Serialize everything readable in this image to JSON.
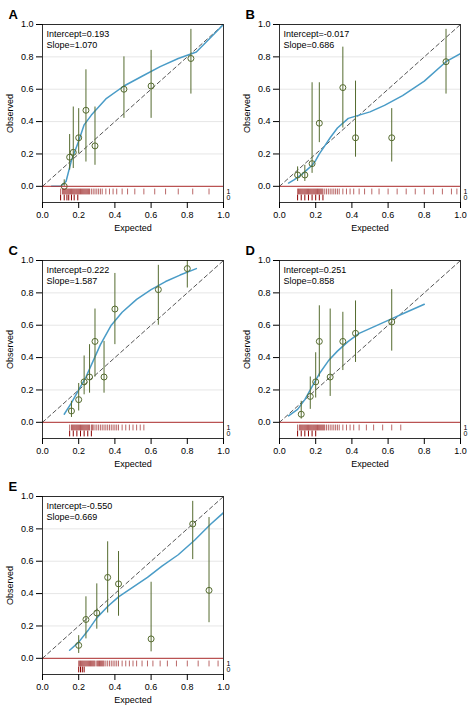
{
  "chart_data": [
    {
      "type": "scatter",
      "title": "A",
      "annotations": [
        "Intercept=0.193",
        "Slope=1.070"
      ],
      "xlabel": "Expected",
      "ylabel": "Observed",
      "xlim": [
        0.0,
        1.0
      ],
      "ylim": [
        -0.1,
        1.0
      ],
      "xticks": [
        {
          "value": 0.0,
          "label": "0.0"
        },
        0.2,
        0.4,
        0.6,
        0.8,
        {
          "value": 1.0,
          "label": "1.0"
        }
      ],
      "yticks": [
        {
          "value": 0.0,
          "label": "0.0"
        },
        0.2,
        0.4,
        0.6,
        0.8,
        {
          "value": 1.0,
          "label": "1.0"
        }
      ],
      "grid": true,
      "series": [
        {
          "type": "line",
          "line_style": "dashed",
          "color": "#555555",
          "x": [
            0,
            1
          ],
          "values": [
            0,
            1
          ]
        },
        {
          "type": "line",
          "color": "#4a9cc7",
          "x": [
            0.05,
            0.1,
            0.13,
            0.16,
            0.18,
            0.2,
            0.23,
            0.27,
            0.35,
            0.45,
            0.55,
            0.65,
            0.75,
            0.85,
            1.0
          ],
          "values": [
            0.0,
            0.0,
            0.03,
            0.16,
            0.22,
            0.28,
            0.38,
            0.44,
            0.54,
            0.62,
            0.68,
            0.74,
            0.79,
            0.83,
            1.0
          ]
        },
        {
          "type": "scatter",
          "marker": "open_circle",
          "color": "#556b2f",
          "x": [
            0.12,
            0.15,
            0.17,
            0.2,
            0.24,
            0.29,
            0.45,
            0.6,
            0.82
          ],
          "values": [
            0.0,
            0.18,
            0.21,
            0.3,
            0.47,
            0.25,
            0.6,
            0.62,
            0.79
          ],
          "error_lo": [
            0.0,
            0.08,
            0.1,
            0.1,
            0.32,
            0.12,
            0.18,
            0.2,
            0.22
          ],
          "error_hi": [
            0.04,
            0.14,
            0.28,
            0.18,
            0.25,
            0.24,
            0.2,
            0.22,
            0.18
          ]
        },
        {
          "type": "hline",
          "color": "#b03030",
          "values": [
            0
          ]
        },
        {
          "type": "rug",
          "label": "1",
          "color": "#8b0000",
          "x": [
            0.1,
            0.11,
            0.115,
            0.12,
            0.125,
            0.13,
            0.135,
            0.14,
            0.145,
            0.15,
            0.155,
            0.16,
            0.165,
            0.17,
            0.175,
            0.18,
            0.185,
            0.19,
            0.195,
            0.2,
            0.205,
            0.21,
            0.215,
            0.22,
            0.225,
            0.23,
            0.235,
            0.24,
            0.245,
            0.25,
            0.255,
            0.26,
            0.27,
            0.28,
            0.29,
            0.3,
            0.31,
            0.32,
            0.33,
            0.35,
            0.37,
            0.39,
            0.41,
            0.44,
            0.47,
            0.51,
            0.56,
            0.62,
            0.68,
            0.75,
            0.83,
            0.92
          ]
        },
        {
          "type": "rug",
          "label": "0",
          "color": "#8b0000",
          "x": [
            0.1,
            0.12,
            0.135,
            0.145,
            0.16,
            0.175,
            0.195
          ]
        }
      ]
    },
    {
      "type": "scatter",
      "title": "B",
      "annotations": [
        "Intercept=-0.017",
        "Slope=0.686"
      ],
      "xlabel": "Expected",
      "ylabel": "Observed",
      "xlim": [
        0.0,
        1.0
      ],
      "ylim": [
        -0.1,
        1.0
      ],
      "xticks": [
        {
          "value": 0.0,
          "label": "0.0"
        },
        0.2,
        0.4,
        0.6,
        0.8,
        {
          "value": 1.0,
          "label": "1.0"
        }
      ],
      "yticks": [
        {
          "value": 0.0,
          "label": "0.0"
        },
        0.2,
        0.4,
        0.6,
        0.8,
        {
          "value": 1.0,
          "label": "1.0"
        }
      ],
      "grid": true,
      "series": [
        {
          "type": "line",
          "line_style": "dashed",
          "color": "#555555",
          "x": [
            0,
            1
          ],
          "values": [
            0,
            1
          ]
        },
        {
          "type": "line",
          "color": "#4a9cc7",
          "x": [
            0.05,
            0.08,
            0.12,
            0.15,
            0.18,
            0.2,
            0.22,
            0.25,
            0.28,
            0.32,
            0.38,
            0.44,
            0.5,
            0.58,
            0.68,
            0.8,
            0.92,
            1.0
          ],
          "values": [
            0.02,
            0.04,
            0.07,
            0.1,
            0.13,
            0.16,
            0.2,
            0.25,
            0.3,
            0.36,
            0.42,
            0.44,
            0.46,
            0.5,
            0.56,
            0.65,
            0.77,
            0.82
          ]
        },
        {
          "type": "scatter",
          "marker": "open_circle",
          "color": "#556b2f",
          "x": [
            0.1,
            0.14,
            0.18,
            0.22,
            0.35,
            0.42,
            0.62,
            0.92
          ],
          "values": [
            0.07,
            0.07,
            0.14,
            0.39,
            0.61,
            0.3,
            0.3,
            0.77
          ],
          "error_lo": [
            0.04,
            0.04,
            0.06,
            0.12,
            0.25,
            0.12,
            0.15,
            0.2
          ],
          "error_hi": [
            0.05,
            0.06,
            0.5,
            0.25,
            0.25,
            0.35,
            0.18,
            0.2
          ]
        },
        {
          "type": "hline",
          "color": "#b03030",
          "values": [
            0
          ]
        },
        {
          "type": "rug",
          "label": "1",
          "color": "#8b0000",
          "x": [
            0.1,
            0.105,
            0.11,
            0.115,
            0.12,
            0.125,
            0.13,
            0.135,
            0.14,
            0.145,
            0.15,
            0.155,
            0.16,
            0.165,
            0.17,
            0.175,
            0.18,
            0.185,
            0.19,
            0.195,
            0.2,
            0.205,
            0.21,
            0.215,
            0.22,
            0.225,
            0.23,
            0.235,
            0.24,
            0.25,
            0.26,
            0.27,
            0.28,
            0.29,
            0.3,
            0.31,
            0.32,
            0.33,
            0.35,
            0.37,
            0.39,
            0.41,
            0.44,
            0.47,
            0.51,
            0.55,
            0.6,
            0.65,
            0.7,
            0.75,
            0.8,
            0.85,
            0.9,
            0.95,
            0.98
          ]
        },
        {
          "type": "rug",
          "label": "0",
          "color": "#8b0000",
          "x": [
            0.1,
            0.12,
            0.14,
            0.16,
            0.18,
            0.2,
            0.22,
            0.24
          ]
        }
      ]
    },
    {
      "type": "scatter",
      "title": "C",
      "annotations": [
        "Intercept=0.222",
        "Slope=1.587"
      ],
      "xlabel": "Expected",
      "ylabel": "Observed",
      "xlim": [
        0.0,
        1.0
      ],
      "ylim": [
        -0.1,
        1.0
      ],
      "xticks": [
        {
          "value": 0.0,
          "label": "0.0"
        },
        0.2,
        0.4,
        0.6,
        0.8,
        {
          "value": 1.0,
          "label": "1.0"
        }
      ],
      "yticks": [
        {
          "value": 0.0,
          "label": "0.0"
        },
        0.2,
        0.4,
        0.6,
        0.8,
        {
          "value": 1.0,
          "label": "1.0"
        }
      ],
      "grid": true,
      "series": [
        {
          "type": "line",
          "line_style": "dashed",
          "color": "#555555",
          "x": [
            0,
            1
          ],
          "values": [
            0,
            1
          ]
        },
        {
          "type": "line",
          "color": "#4a9cc7",
          "x": [
            0.12,
            0.16,
            0.2,
            0.24,
            0.28,
            0.32,
            0.38,
            0.44,
            0.52,
            0.6,
            0.68,
            0.76,
            0.85
          ],
          "values": [
            0.05,
            0.12,
            0.2,
            0.28,
            0.38,
            0.48,
            0.6,
            0.68,
            0.76,
            0.82,
            0.87,
            0.91,
            0.95
          ]
        },
        {
          "type": "scatter",
          "marker": "open_circle",
          "color": "#556b2f",
          "x": [
            0.16,
            0.2,
            0.23,
            0.26,
            0.29,
            0.34,
            0.4,
            0.64,
            0.8
          ],
          "values": [
            0.07,
            0.14,
            0.25,
            0.28,
            0.5,
            0.28,
            0.7,
            0.82,
            0.95
          ],
          "error_lo": [
            0.04,
            0.07,
            0.08,
            0.1,
            0.22,
            0.1,
            0.22,
            0.22,
            0.12
          ],
          "error_hi": [
            0.06,
            0.1,
            0.16,
            0.2,
            0.2,
            0.22,
            0.22,
            0.15,
            0.05
          ]
        },
        {
          "type": "hline",
          "color": "#b03030",
          "values": [
            0
          ]
        },
        {
          "type": "rug",
          "label": "1",
          "color": "#8b0000",
          "x": [
            0.15,
            0.16,
            0.165,
            0.17,
            0.175,
            0.18,
            0.185,
            0.19,
            0.195,
            0.2,
            0.205,
            0.21,
            0.215,
            0.22,
            0.225,
            0.23,
            0.235,
            0.24,
            0.245,
            0.25,
            0.255,
            0.26,
            0.27,
            0.275,
            0.28,
            0.29,
            0.3,
            0.31,
            0.32,
            0.33,
            0.34,
            0.35,
            0.36,
            0.37,
            0.38,
            0.39,
            0.4,
            0.41,
            0.42,
            0.44,
            0.46,
            0.48,
            0.5,
            0.52,
            0.54,
            0.56
          ]
        },
        {
          "type": "rug",
          "label": "0",
          "color": "#8b0000",
          "x": [
            0.15,
            0.17,
            0.19,
            0.21,
            0.23,
            0.25,
            0.27
          ]
        }
      ]
    },
    {
      "type": "scatter",
      "title": "D",
      "annotations": [
        "Intercept=0.251",
        "Slope=0.858"
      ],
      "xlabel": "Expected",
      "ylabel": "Observed",
      "xlim": [
        0.0,
        1.0
      ],
      "ylim": [
        -0.1,
        1.0
      ],
      "xticks": [
        {
          "value": 0.0,
          "label": "0.0"
        },
        0.2,
        0.4,
        0.6,
        0.8,
        {
          "value": 1.0,
          "label": "1.0"
        }
      ],
      "yticks": [
        {
          "value": 0.0,
          "label": "0.0"
        },
        0.2,
        0.4,
        0.6,
        0.8,
        {
          "value": 1.0,
          "label": "1.0"
        }
      ],
      "grid": true,
      "series": [
        {
          "type": "line",
          "line_style": "dashed",
          "color": "#555555",
          "x": [
            0,
            1
          ],
          "values": [
            0,
            1
          ]
        },
        {
          "type": "line",
          "color": "#4a9cc7",
          "x": [
            0.05,
            0.1,
            0.14,
            0.18,
            0.22,
            0.27,
            0.32,
            0.38,
            0.44,
            0.52,
            0.6,
            0.7,
            0.8
          ],
          "values": [
            0.04,
            0.08,
            0.14,
            0.22,
            0.3,
            0.38,
            0.44,
            0.5,
            0.55,
            0.59,
            0.63,
            0.68,
            0.73
          ]
        },
        {
          "type": "scatter",
          "marker": "open_circle",
          "color": "#556b2f",
          "x": [
            0.12,
            0.17,
            0.2,
            0.22,
            0.28,
            0.35,
            0.42,
            0.62
          ],
          "values": [
            0.05,
            0.16,
            0.25,
            0.5,
            0.28,
            0.5,
            0.55,
            0.62
          ],
          "error_lo": [
            0.03,
            0.08,
            0.1,
            0.22,
            0.12,
            0.18,
            0.18,
            0.18
          ],
          "error_hi": [
            0.08,
            0.12,
            0.18,
            0.22,
            0.42,
            0.18,
            0.2,
            0.2
          ]
        },
        {
          "type": "hline",
          "color": "#b03030",
          "values": [
            0
          ]
        },
        {
          "type": "rug",
          "label": "1",
          "color": "#8b0000",
          "x": [
            0.1,
            0.11,
            0.115,
            0.12,
            0.125,
            0.13,
            0.135,
            0.14,
            0.145,
            0.15,
            0.155,
            0.16,
            0.165,
            0.17,
            0.175,
            0.18,
            0.185,
            0.19,
            0.195,
            0.2,
            0.205,
            0.21,
            0.215,
            0.22,
            0.225,
            0.23,
            0.235,
            0.24,
            0.245,
            0.25,
            0.26,
            0.27,
            0.28,
            0.29,
            0.3,
            0.31,
            0.32,
            0.33,
            0.35,
            0.37,
            0.39,
            0.41,
            0.44,
            0.48,
            0.52,
            0.57,
            0.62,
            0.67
          ]
        },
        {
          "type": "rug",
          "label": "0",
          "color": "#8b0000",
          "x": [
            0.1,
            0.12,
            0.14,
            0.16,
            0.18,
            0.2
          ]
        }
      ]
    },
    {
      "type": "scatter",
      "title": "E",
      "annotations": [
        "Intercept=-0.550",
        "Slope=0.669"
      ],
      "xlabel": "Expected",
      "ylabel": "Observed",
      "xlim": [
        0.0,
        1.0
      ],
      "ylim": [
        -0.1,
        1.0
      ],
      "xticks": [
        {
          "value": 0.0,
          "label": "0.0"
        },
        0.2,
        0.4,
        0.6,
        0.8,
        {
          "value": 1.0,
          "label": "1.0"
        }
      ],
      "yticks": [
        {
          "value": 0.0,
          "label": "0.0"
        },
        0.2,
        0.4,
        0.6,
        0.8,
        {
          "value": 1.0,
          "label": "1.0"
        }
      ],
      "grid": true,
      "series": [
        {
          "type": "line",
          "line_style": "dashed",
          "color": "#555555",
          "x": [
            0,
            1
          ],
          "values": [
            0,
            1
          ]
        },
        {
          "type": "line",
          "color": "#4a9cc7",
          "x": [
            0.15,
            0.2,
            0.25,
            0.3,
            0.36,
            0.42,
            0.5,
            0.58,
            0.66,
            0.75,
            0.84,
            0.93,
            1.0
          ],
          "values": [
            0.05,
            0.1,
            0.17,
            0.25,
            0.32,
            0.38,
            0.44,
            0.5,
            0.57,
            0.64,
            0.73,
            0.83,
            0.9
          ]
        },
        {
          "type": "scatter",
          "marker": "open_circle",
          "color": "#556b2f",
          "x": [
            0.2,
            0.24,
            0.3,
            0.36,
            0.42,
            0.6,
            0.83,
            0.92
          ],
          "values": [
            0.08,
            0.24,
            0.28,
            0.5,
            0.46,
            0.12,
            0.83,
            0.42
          ],
          "error_lo": [
            0.05,
            0.12,
            0.1,
            0.22,
            0.2,
            0.08,
            0.22,
            0.2
          ],
          "error_hi": [
            0.06,
            0.14,
            0.18,
            0.22,
            0.2,
            0.35,
            0.14,
            0.45
          ]
        },
        {
          "type": "hline",
          "color": "#b03030",
          "values": [
            0
          ]
        },
        {
          "type": "rug",
          "label": "1",
          "color": "#8b0000",
          "x": [
            0.2,
            0.205,
            0.21,
            0.215,
            0.22,
            0.225,
            0.23,
            0.235,
            0.24,
            0.245,
            0.25,
            0.255,
            0.26,
            0.265,
            0.27,
            0.275,
            0.28,
            0.285,
            0.29,
            0.3,
            0.305,
            0.31,
            0.315,
            0.32,
            0.325,
            0.33,
            0.335,
            0.34,
            0.35,
            0.36,
            0.37,
            0.38,
            0.39,
            0.4,
            0.41,
            0.42,
            0.44,
            0.46,
            0.48,
            0.5,
            0.52,
            0.55,
            0.58,
            0.61,
            0.65,
            0.69,
            0.74,
            0.8,
            0.86,
            0.92,
            0.97
          ]
        },
        {
          "type": "rug",
          "label": "0",
          "color": "#8b0000",
          "x": [
            0.2,
            0.21,
            0.22,
            0.23
          ]
        }
      ]
    }
  ]
}
